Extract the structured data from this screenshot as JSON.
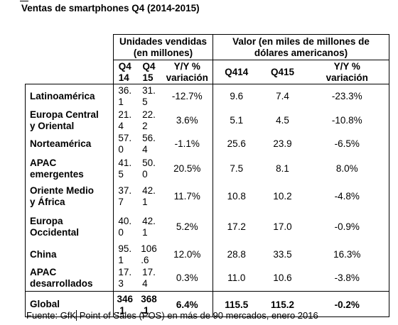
{
  "title": "Ventas de smartphones Q4 (2014-2015)",
  "groups": {
    "units": "Unidades vendidas (en millones)",
    "value": "Valor (en miles de millones de dólares americanos)"
  },
  "subheaders": {
    "units_q414": [
      "Q4",
      "14"
    ],
    "units_q415": [
      "Q4",
      "15"
    ],
    "units_yoy": [
      "Y/Y %",
      "variación"
    ],
    "value_q414": "Q414",
    "value_q415": "Q415",
    "value_yoy": [
      "Y/Y %",
      "variación"
    ]
  },
  "rows": [
    {
      "region": [
        "Latinoamérica"
      ],
      "u14": [
        "36.",
        "1"
      ],
      "u15": [
        "31.",
        "5"
      ],
      "uyoy": "-12.7%",
      "v14": "9.6",
      "v15": "7.4",
      "vyoy": "-23.3%"
    },
    {
      "region": [
        "Europa Central",
        "y Oriental"
      ],
      "u14": [
        "21.",
        "4"
      ],
      "u15": [
        "22.",
        "2"
      ],
      "uyoy": "3.6%",
      "v14": "5.1",
      "v15": "4.5",
      "vyoy": "-10.8%"
    },
    {
      "region": [
        "Norteamérica"
      ],
      "u14": [
        "57.",
        "0"
      ],
      "u15": [
        "56.",
        "4"
      ],
      "uyoy": "-1.1%",
      "v14": "25.6",
      "v15": "23.9",
      "vyoy": "-6.5%"
    },
    {
      "region": [
        "APAC",
        "emergentes"
      ],
      "u14": [
        "41.",
        "5"
      ],
      "u15": [
        "50.",
        "0"
      ],
      "uyoy": "20.5%",
      "v14": "7.5",
      "v15": "8.1",
      "vyoy": "8.0%"
    },
    {
      "region": [
        "Oriente Medio",
        "y  África"
      ],
      "u14": [
        "37.",
        "7"
      ],
      "u15": [
        "42.",
        "1"
      ],
      "uyoy": "11.7%",
      "v14": "10.8",
      "v15": "10.2",
      "vyoy": "-4.8%"
    },
    {
      "region": [
        "Europa",
        "Occidental"
      ],
      "u14": [
        "40.",
        "0"
      ],
      "u15": [
        "42.",
        "1"
      ],
      "uyoy": "5.2%",
      "v14": "17.2",
      "v15": "17.0",
      "vyoy": "-0.9%"
    },
    {
      "region": [
        "China"
      ],
      "u14": [
        "95.",
        "1"
      ],
      "u15": [
        "106",
        ".6"
      ],
      "uyoy": "12.0%",
      "v14": "28.8",
      "v15": "33.5",
      "vyoy": "16.3%"
    },
    {
      "region": [
        "APAC",
        "desarrollados"
      ],
      "u14": [
        "17.",
        "3"
      ],
      "u15": [
        "17.",
        "4"
      ],
      "uyoy": "0.3%",
      "v14": "11.0",
      "v15": "10.6",
      "vyoy": "-3.8%"
    }
  ],
  "total": {
    "region": "Global",
    "u14": [
      "346",
      ".1"
    ],
    "u15": [
      "368",
      ".1"
    ],
    "uyoy": "6.4%",
    "v14": "115.5",
    "v15": "115.2",
    "vyoy": "-0.2%"
  },
  "source": {
    "before_cursor": "Fuente: GfK",
    "after_cursor": " Point of Sales (POS) en más de 90 mercados, enero 2016"
  }
}
